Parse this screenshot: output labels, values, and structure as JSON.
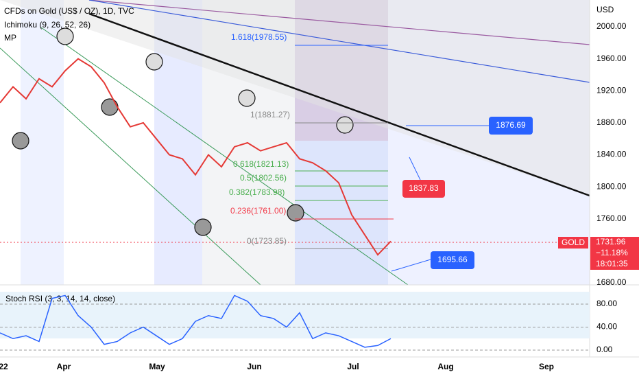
{
  "header": {
    "symbol": "CFDs on Gold (US$ / OZ), 1D, TVC",
    "indicator": "Ichimoku (9, 26, 52, 26)",
    "extra": "MP"
  },
  "price_axis": {
    "unit": "USD",
    "ticks": [
      {
        "value": 2000,
        "label": "2000.00"
      },
      {
        "value": 1960,
        "label": "1960.00"
      },
      {
        "value": 1920,
        "label": "1920.00"
      },
      {
        "value": 1880,
        "label": "1880.00"
      },
      {
        "value": 1840,
        "label": "1840.00"
      },
      {
        "value": 1800,
        "label": "1800.00"
      },
      {
        "value": 1760,
        "label": "1760.00"
      },
      {
        "value": 1680,
        "label": "1680.00"
      }
    ]
  },
  "fib_labels": [
    "1.618(1978.55)",
    "1(1881.27)",
    "0.618(1821.13)",
    "0.5(1802.56)",
    "0.382(1783.98)",
    "0.236(1761.00)",
    "0(1723.85)"
  ],
  "badges": {
    "upper": "1876.69",
    "middle": "1837.83",
    "lower": "1695.66"
  },
  "quote": {
    "symbol": "GOLD",
    "price": "1731.96",
    "change": "−11.18%",
    "countdown": "18:01:35"
  },
  "price_line": [
    1905,
    1925,
    1910,
    1935,
    1925,
    1945,
    1960,
    1950,
    1930,
    1900,
    1875,
    1880,
    1860,
    1840,
    1835,
    1815,
    1840,
    1825,
    1850,
    1855,
    1845,
    1850,
    1855,
    1835,
    1830,
    1820,
    1805,
    1765,
    1740,
    1715,
    1732
  ],
  "rsi": {
    "title": "Stoch RSI (3, 3, 14, 14, close)",
    "ticks": [
      {
        "value": 80,
        "label": "80.00"
      },
      {
        "value": 40,
        "label": "40.00"
      },
      {
        "value": 0,
        "label": "0.00"
      }
    ],
    "values": [
      30,
      20,
      25,
      15,
      90,
      95,
      60,
      40,
      10,
      15,
      30,
      40,
      25,
      10,
      20,
      50,
      60,
      55,
      95,
      85,
      60,
      55,
      40,
      65,
      20,
      30,
      25,
      15,
      5,
      8,
      20
    ]
  },
  "time_axis": [
    "22",
    "Apr",
    "May",
    "Jun",
    "Jul",
    "Aug",
    "Sep"
  ]
}
